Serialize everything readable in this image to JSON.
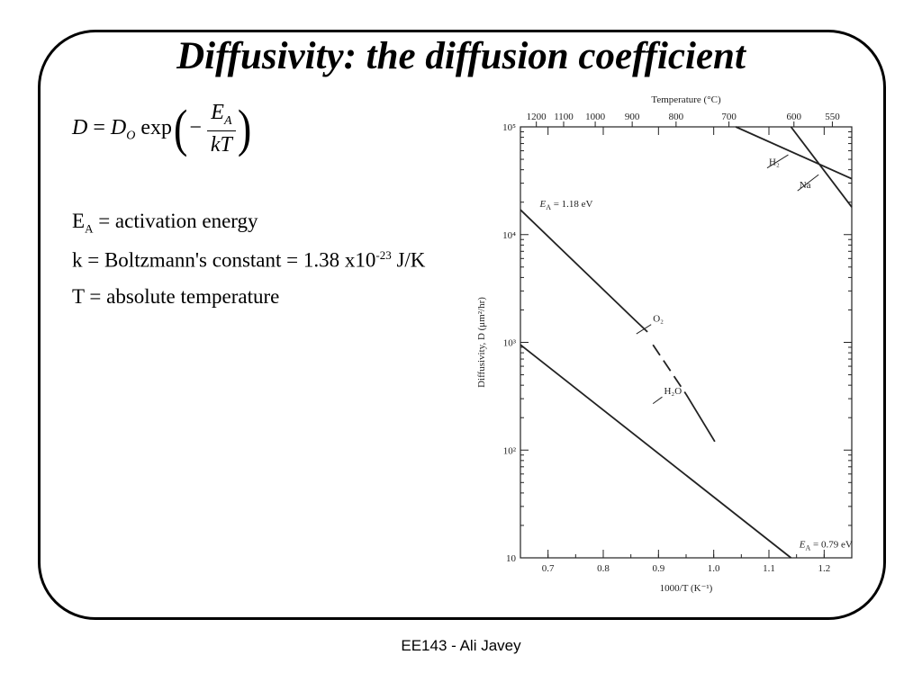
{
  "slide": {
    "title": "Diffusivity: the diffusion coefficient",
    "equation": {
      "lhs": "D",
      "eq": "=",
      "d": "D",
      "d_sub": "O",
      "func": "exp",
      "minus": "−",
      "num": "E",
      "num_sub": "A",
      "den": "kT"
    },
    "definitions": [
      {
        "sym": "E",
        "sub": "A",
        "text": "= activation energy"
      },
      {
        "text_pre": "k = Boltzmann's constant = 1.38 x10",
        "sup": "-23",
        "text_post": " J/K"
      },
      {
        "text": "T = absolute temperature"
      }
    ],
    "footer": "EE143 - Ali Javey"
  },
  "chart_data": {
    "type": "line",
    "xlabel": "1000/T (K⁻¹)",
    "ylabel": "Diffusivity, D (μm²/hr)",
    "top_axis_label": "Temperature (°C)",
    "xlim": [
      0.65,
      1.25
    ],
    "ylim": [
      10,
      100000
    ],
    "yscale": "log",
    "xticks": [
      0.7,
      0.8,
      0.9,
      1.0,
      1.1,
      1.2
    ],
    "xtick_labels": [
      "0.7",
      "0.8",
      "0.9",
      "1.0",
      "1.1",
      "1.2"
    ],
    "yticks": [
      10,
      100,
      1000,
      10000,
      100000
    ],
    "ytick_labels": [
      "10",
      "10²",
      "10³",
      "10⁴",
      "10⁵"
    ],
    "top_ticks": [
      1200,
      1100,
      1000,
      900,
      800,
      700,
      600,
      550
    ],
    "top_tick_labels": [
      "1200",
      "1100",
      "1000",
      "900",
      "800",
      "700",
      "600",
      "550"
    ],
    "series": [
      {
        "name": "O₂",
        "points": [
          [
            0.65,
            17000
          ],
          [
            0.858,
            1600
          ],
          [
            0.88,
            1250
          ]
        ],
        "dashed": [
          [
            0.89,
            950
          ],
          [
            0.95,
            330
          ]
        ],
        "tail": [
          [
            0.95,
            330
          ],
          [
            1.002,
            120
          ]
        ]
      },
      {
        "name": "H₂O",
        "points": [
          [
            0.65,
            950
          ],
          [
            1.14,
            10
          ]
        ]
      },
      {
        "name": "H₂",
        "points": [
          [
            1.04,
            100000
          ],
          [
            1.25,
            33000
          ]
        ]
      },
      {
        "name": "Na",
        "points": [
          [
            1.14,
            100000
          ],
          [
            1.25,
            18000
          ]
        ]
      }
    ],
    "annotations": [
      {
        "text": "E",
        "sub": "A",
        "rest": " = 1.18 eV",
        "x": 0.685,
        "y": 18000
      },
      {
        "text": "E",
        "sub": "A",
        "rest": " = 0.79 eV",
        "x": 1.155,
        "y": 12.5
      }
    ]
  }
}
